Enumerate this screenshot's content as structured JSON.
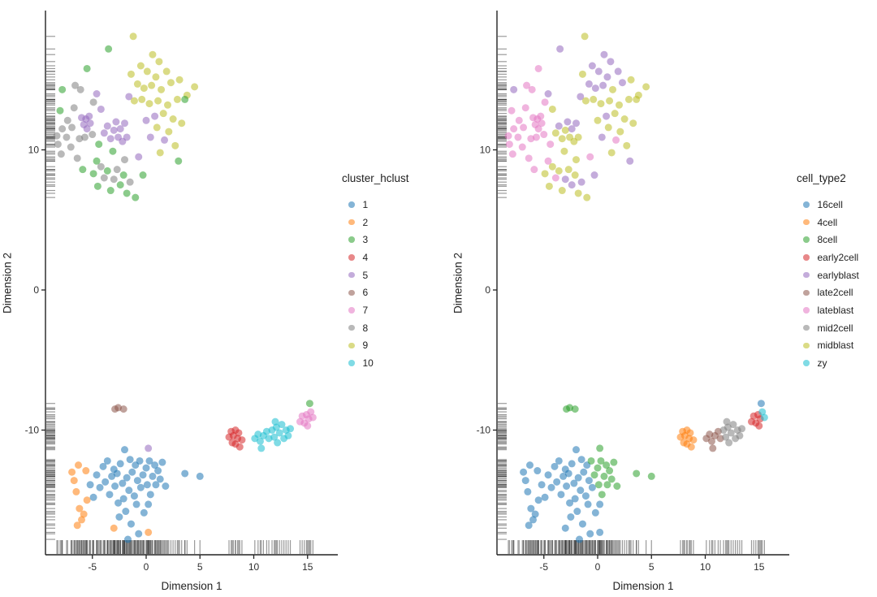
{
  "figure": {
    "panels": [
      {
        "key": "cluster",
        "xlabel": "Dimension 1",
        "ylabel": "Dimension 2",
        "legend_title": "cluster_hclust"
      },
      {
        "key": "cell_type",
        "xlabel": "Dimension 1",
        "ylabel": "Dimension 2",
        "legend_title": "cell_type2"
      }
    ]
  },
  "chart_data": {
    "type": "scatter",
    "title": "",
    "subtitle": "",
    "xlabel": "Dimension 1",
    "ylabel": "Dimension 2",
    "xlim": [
      -9.4,
      17.8
    ],
    "ylim": [
      -18.9,
      19.8
    ],
    "x_ticks": [
      -5,
      0,
      5,
      10,
      15
    ],
    "y_ticks": [
      10,
      0,
      -10
    ],
    "grid": false,
    "rug": true,
    "point_alpha": 0.55,
    "legend_position": "right",
    "legends": [
      {
        "title": "cluster_hclust",
        "palette_key": "cluster",
        "entries": [
          "1",
          "2",
          "3",
          "4",
          "5",
          "6",
          "7",
          "8",
          "9",
          "10"
        ]
      },
      {
        "title": "cell_type2",
        "palette_key": "cell_type",
        "entries": [
          "16cell",
          "4cell",
          "8cell",
          "early2cell",
          "earlyblast",
          "late2cell",
          "lateblast",
          "mid2cell",
          "midblast",
          "zy"
        ]
      }
    ],
    "palette": {
      "cluster": {
        "1": "#1f77b4",
        "2": "#ff7f0e",
        "3": "#2ca02c",
        "4": "#d62728",
        "5": "#9467bd",
        "6": "#8c564b",
        "7": "#e377c2",
        "8": "#7f7f7f",
        "9": "#bcbd22",
        "10": "#17becf"
      },
      "cell_type": {
        "16cell": "#1f77b4",
        "4cell": "#ff7f0e",
        "8cell": "#2ca02c",
        "early2cell": "#d62728",
        "earlyblast": "#9467bd",
        "late2cell": "#8c564b",
        "lateblast": "#e377c2",
        "mid2cell": "#7f7f7f",
        "midblast": "#bcbd22",
        "zy": "#17becf"
      }
    },
    "points_format": [
      "x",
      "y",
      "cluster",
      "cell_type"
    ],
    "points": [
      [
        -8.2,
        10.4,
        "8",
        "lateblast"
      ],
      [
        -7.9,
        9.7,
        "8",
        "lateblast"
      ],
      [
        -7.8,
        11.5,
        "8",
        "lateblast"
      ],
      [
        -7.8,
        14.3,
        "3",
        "earlyblast"
      ],
      [
        -7.4,
        10.9,
        "8",
        "lateblast"
      ],
      [
        -7.3,
        12.1,
        "8",
        "lateblast"
      ],
      [
        -7.0,
        10.2,
        "8",
        "lateblast"
      ],
      [
        -6.9,
        11.6,
        "8",
        "lateblast"
      ],
      [
        -6.7,
        13.0,
        "8",
        "lateblast"
      ],
      [
        -6.6,
        14.6,
        "8",
        "lateblast"
      ],
      [
        -6.4,
        9.4,
        "8",
        "lateblast"
      ],
      [
        -6.2,
        10.8,
        "8",
        "lateblast"
      ],
      [
        -6.1,
        14.3,
        "8",
        "lateblast"
      ],
      [
        -8.0,
        12.8,
        "3",
        "lateblast"
      ],
      [
        -8.3,
        11.0,
        "8",
        "lateblast"
      ],
      [
        -6.0,
        12.3,
        "5",
        "lateblast"
      ],
      [
        -5.8,
        11.8,
        "5",
        "lateblast"
      ],
      [
        -5.6,
        12.2,
        "5",
        "lateblast"
      ],
      [
        -5.5,
        11.5,
        "5",
        "lateblast"
      ],
      [
        -5.3,
        12.4,
        "5",
        "lateblast"
      ],
      [
        -5.2,
        11.9,
        "5",
        "lateblast"
      ],
      [
        -5.7,
        10.9,
        "8",
        "lateblast"
      ],
      [
        -5.0,
        11.1,
        "8",
        "lateblast"
      ],
      [
        -5.5,
        15.8,
        "3",
        "lateblast"
      ],
      [
        -4.9,
        13.4,
        "8",
        "lateblast"
      ],
      [
        -4.6,
        14.0,
        "5",
        "earlyblast"
      ],
      [
        -4.2,
        12.9,
        "5",
        "midblast"
      ],
      [
        -4.4,
        10.4,
        "3",
        "lateblast"
      ],
      [
        -5.9,
        8.6,
        "3",
        "lateblast"
      ],
      [
        -3.9,
        11.2,
        "5",
        "midblast"
      ],
      [
        -3.6,
        11.7,
        "5",
        "earlyblast"
      ],
      [
        -3.3,
        10.8,
        "5",
        "midblast"
      ],
      [
        -3.0,
        11.4,
        "5",
        "midblast"
      ],
      [
        -2.8,
        12.0,
        "5",
        "earlyblast"
      ],
      [
        -2.6,
        10.9,
        "5",
        "midblast"
      ],
      [
        -2.4,
        11.5,
        "5",
        "earlyblast"
      ],
      [
        -2.2,
        10.6,
        "5",
        "midblast"
      ],
      [
        -3.5,
        17.2,
        "3",
        "earlyblast"
      ],
      [
        -2.0,
        11.9,
        "5",
        "earlyblast"
      ],
      [
        -1.8,
        10.9,
        "5",
        "midblast"
      ],
      [
        -3.1,
        9.9,
        "3",
        "midblast"
      ],
      [
        -1.2,
        18.1,
        "9",
        "midblast"
      ],
      [
        -0.5,
        16.0,
        "9",
        "earlyblast"
      ],
      [
        0.6,
        16.8,
        "9",
        "earlyblast"
      ],
      [
        1.2,
        16.3,
        "9",
        "earlyblast"
      ],
      [
        -1.4,
        15.4,
        "9",
        "midblast"
      ],
      [
        0.1,
        15.6,
        "9",
        "earlyblast"
      ],
      [
        0.9,
        15.2,
        "9",
        "earlyblast"
      ],
      [
        1.9,
        15.6,
        "9",
        "earlyblast"
      ],
      [
        -0.8,
        14.7,
        "9",
        "earlyblast"
      ],
      [
        -0.2,
        14.4,
        "9",
        "earlyblast"
      ],
      [
        0.5,
        14.6,
        "9",
        "earlyblast"
      ],
      [
        1.4,
        14.3,
        "9",
        "midblast"
      ],
      [
        2.3,
        14.8,
        "9",
        "earlyblast"
      ],
      [
        3.1,
        15.0,
        "9",
        "midblast"
      ],
      [
        -1.6,
        13.8,
        "5",
        "earlyblast"
      ],
      [
        -1.1,
        13.5,
        "9",
        "midblast"
      ],
      [
        -0.4,
        13.6,
        "9",
        "midblast"
      ],
      [
        0.3,
        13.3,
        "9",
        "midblast"
      ],
      [
        1.1,
        13.5,
        "9",
        "midblast"
      ],
      [
        2.0,
        13.2,
        "9",
        "midblast"
      ],
      [
        2.9,
        13.6,
        "9",
        "midblast"
      ],
      [
        3.8,
        13.9,
        "9",
        "midblast"
      ],
      [
        4.5,
        14.5,
        "9",
        "midblast"
      ],
      [
        3.6,
        13.6,
        "3",
        "midblast"
      ],
      [
        1.6,
        12.6,
        "9",
        "midblast"
      ],
      [
        2.5,
        12.2,
        "9",
        "midblast"
      ],
      [
        0.8,
        12.4,
        "5",
        "earlyblast"
      ],
      [
        0.0,
        12.1,
        "5",
        "midblast"
      ],
      [
        1.0,
        11.6,
        "9",
        "midblast"
      ],
      [
        2.1,
        11.3,
        "9",
        "midblast"
      ],
      [
        3.3,
        11.9,
        "9",
        "midblast"
      ],
      [
        1.7,
        10.7,
        "5",
        "lateblast"
      ],
      [
        2.7,
        10.3,
        "9",
        "midblast"
      ],
      [
        0.4,
        10.9,
        "5",
        "earlyblast"
      ],
      [
        1.3,
        9.8,
        "9",
        "midblast"
      ],
      [
        3.0,
        9.2,
        "3",
        "earlyblast"
      ],
      [
        -0.7,
        9.5,
        "5",
        "lateblast"
      ],
      [
        -0.3,
        8.2,
        "3",
        "earlyblast"
      ],
      [
        -4.9,
        8.3,
        "3",
        "midblast"
      ],
      [
        -4.5,
        7.4,
        "3",
        "midblast"
      ],
      [
        -4.2,
        8.8,
        "8",
        "midblast"
      ],
      [
        -3.9,
        8.0,
        "8",
        "lateblast"
      ],
      [
        -3.6,
        8.5,
        "3",
        "midblast"
      ],
      [
        -3.3,
        7.1,
        "3",
        "midblast"
      ],
      [
        -3.0,
        7.9,
        "8",
        "earlyblast"
      ],
      [
        -2.7,
        8.6,
        "8",
        "midblast"
      ],
      [
        -2.4,
        7.5,
        "3",
        "earlyblast"
      ],
      [
        -2.1,
        8.2,
        "3",
        "midblast"
      ],
      [
        -1.8,
        6.9,
        "3",
        "midblast"
      ],
      [
        -1.5,
        7.7,
        "8",
        "earlyblast"
      ],
      [
        -4.6,
        9.2,
        "3",
        "lateblast"
      ],
      [
        -1.0,
        6.6,
        "3",
        "midblast"
      ],
      [
        -2.0,
        9.3,
        "8",
        "midblast"
      ],
      [
        -6.9,
        -13.0,
        "2",
        "16cell"
      ],
      [
        -6.7,
        -13.6,
        "2",
        "16cell"
      ],
      [
        -6.5,
        -14.4,
        "2",
        "16cell"
      ],
      [
        -6.3,
        -12.5,
        "2",
        "16cell"
      ],
      [
        -6.2,
        -15.6,
        "2",
        "16cell"
      ],
      [
        -6.0,
        -16.4,
        "2",
        "16cell"
      ],
      [
        -5.8,
        -16.0,
        "2",
        "16cell"
      ],
      [
        -6.4,
        -16.8,
        "2",
        "16cell"
      ],
      [
        -5.6,
        -12.9,
        "2",
        "16cell"
      ],
      [
        -5.5,
        -15.0,
        "2",
        "16cell"
      ],
      [
        -3.0,
        -17.0,
        "2",
        "16cell"
      ],
      [
        0.2,
        -17.3,
        "2",
        "16cell"
      ],
      [
        -5.2,
        -13.9,
        "1",
        "16cell"
      ],
      [
        -4.9,
        -14.8,
        "1",
        "16cell"
      ],
      [
        -4.6,
        -13.2,
        "1",
        "16cell"
      ],
      [
        -4.3,
        -14.1,
        "1",
        "16cell"
      ],
      [
        -4.0,
        -12.6,
        "1",
        "16cell"
      ],
      [
        -3.8,
        -13.7,
        "1",
        "16cell"
      ],
      [
        -3.6,
        -12.2,
        "1",
        "16cell"
      ],
      [
        -3.4,
        -14.6,
        "1",
        "16cell"
      ],
      [
        -3.2,
        -13.3,
        "1",
        "16cell"
      ],
      [
        -3.0,
        -12.8,
        "1",
        "16cell"
      ],
      [
        -2.9,
        -14.0,
        "1",
        "16cell"
      ],
      [
        -2.7,
        -13.1,
        "1",
        "16cell"
      ],
      [
        -2.6,
        -15.2,
        "1",
        "16cell"
      ],
      [
        -2.5,
        -16.2,
        "1",
        "16cell"
      ],
      [
        -2.4,
        -12.4,
        "1",
        "16cell"
      ],
      [
        -2.2,
        -13.8,
        "1",
        "16cell"
      ],
      [
        -2.1,
        -14.9,
        "1",
        "16cell"
      ],
      [
        -2.0,
        -11.4,
        "1",
        "16cell"
      ],
      [
        -1.9,
        -15.8,
        "1",
        "16cell"
      ],
      [
        -1.8,
        -13.4,
        "1",
        "16cell"
      ],
      [
        -1.6,
        -14.3,
        "1",
        "16cell"
      ],
      [
        -1.5,
        -12.1,
        "1",
        "16cell"
      ],
      [
        -1.4,
        -16.7,
        "1",
        "16cell"
      ],
      [
        -1.3,
        -13.0,
        "1",
        "16cell"
      ],
      [
        -1.1,
        -14.7,
        "1",
        "16cell"
      ],
      [
        -1.0,
        -12.5,
        "1",
        "16cell"
      ],
      [
        -0.9,
        -15.3,
        "1",
        "16cell"
      ],
      [
        -0.8,
        -13.6,
        "1",
        "16cell"
      ],
      [
        -0.7,
        -17.4,
        "1",
        "16cell"
      ],
      [
        -0.5,
        -14.1,
        "1",
        "16cell"
      ],
      [
        -0.2,
        -15.9,
        "1",
        "16cell"
      ],
      [
        -1.7,
        -17.8,
        "1",
        "16cell"
      ],
      [
        0.2,
        -15.3,
        "1",
        "16cell"
      ],
      [
        -0.6,
        -12.2,
        "1",
        "8cell"
      ],
      [
        -0.3,
        -13.2,
        "1",
        "8cell"
      ],
      [
        0.0,
        -12.7,
        "1",
        "8cell"
      ],
      [
        0.1,
        -13.9,
        "1",
        "8cell"
      ],
      [
        0.3,
        -12.2,
        "1",
        "8cell"
      ],
      [
        0.4,
        -14.6,
        "1",
        "8cell"
      ],
      [
        0.6,
        -13.3,
        "1",
        "8cell"
      ],
      [
        0.8,
        -12.5,
        "1",
        "8cell"
      ],
      [
        0.9,
        -13.9,
        "1",
        "8cell"
      ],
      [
        1.1,
        -12.9,
        "1",
        "8cell"
      ],
      [
        1.3,
        -13.5,
        "1",
        "8cell"
      ],
      [
        1.5,
        -12.3,
        "1",
        "8cell"
      ],
      [
        1.8,
        -14.0,
        "1",
        "8cell"
      ],
      [
        3.6,
        -13.1,
        "1",
        "8cell"
      ],
      [
        5.0,
        -13.3,
        "1",
        "8cell"
      ],
      [
        0.2,
        -11.3,
        "5",
        "8cell"
      ],
      [
        -2.9,
        -8.5,
        "6",
        "8cell"
      ],
      [
        -2.6,
        -8.4,
        "6",
        "8cell"
      ],
      [
        -2.1,
        -8.5,
        "6",
        "8cell"
      ],
      [
        7.7,
        -10.5,
        "4",
        "4cell"
      ],
      [
        7.9,
        -10.1,
        "4",
        "4cell"
      ],
      [
        8.0,
        -10.9,
        "4",
        "4cell"
      ],
      [
        8.1,
        -10.4,
        "4",
        "4cell"
      ],
      [
        8.3,
        -10.0,
        "4",
        "4cell"
      ],
      [
        8.3,
        -11.0,
        "4",
        "4cell"
      ],
      [
        8.5,
        -10.6,
        "4",
        "4cell"
      ],
      [
        8.6,
        -10.2,
        "4",
        "4cell"
      ],
      [
        8.7,
        -11.2,
        "4",
        "4cell"
      ],
      [
        8.9,
        -10.7,
        "4",
        "4cell"
      ],
      [
        10.1,
        -10.6,
        "10",
        "late2cell"
      ],
      [
        10.4,
        -10.3,
        "10",
        "late2cell"
      ],
      [
        10.6,
        -10.8,
        "10",
        "late2cell"
      ],
      [
        10.9,
        -10.4,
        "10",
        "late2cell"
      ],
      [
        11.2,
        -10.1,
        "10",
        "late2cell"
      ],
      [
        11.4,
        -10.6,
        "10",
        "late2cell"
      ],
      [
        10.7,
        -11.3,
        "10",
        "late2cell"
      ],
      [
        11.7,
        -10.0,
        "10",
        "mid2cell"
      ],
      [
        11.9,
        -10.5,
        "10",
        "mid2cell"
      ],
      [
        12.1,
        -9.8,
        "10",
        "mid2cell"
      ],
      [
        12.2,
        -10.9,
        "10",
        "mid2cell"
      ],
      [
        12.4,
        -10.2,
        "10",
        "mid2cell"
      ],
      [
        12.6,
        -9.6,
        "10",
        "mid2cell"
      ],
      [
        12.8,
        -10.6,
        "10",
        "mid2cell"
      ],
      [
        13.0,
        -10.0,
        "10",
        "mid2cell"
      ],
      [
        13.2,
        -10.4,
        "10",
        "mid2cell"
      ],
      [
        13.4,
        -9.9,
        "10",
        "mid2cell"
      ],
      [
        12.0,
        -9.4,
        "10",
        "mid2cell"
      ],
      [
        14.3,
        -9.4,
        "7",
        "early2cell"
      ],
      [
        14.5,
        -9.0,
        "7",
        "early2cell"
      ],
      [
        14.7,
        -9.5,
        "7",
        "early2cell"
      ],
      [
        14.9,
        -8.9,
        "7",
        "early2cell"
      ],
      [
        15.1,
        -9.2,
        "7",
        "early2cell"
      ],
      [
        15.0,
        -9.7,
        "7",
        "early2cell"
      ],
      [
        15.3,
        -8.7,
        "7",
        "zy"
      ],
      [
        15.5,
        -9.1,
        "7",
        "zy"
      ],
      [
        15.2,
        -8.1,
        "3",
        "16cell"
      ]
    ]
  }
}
